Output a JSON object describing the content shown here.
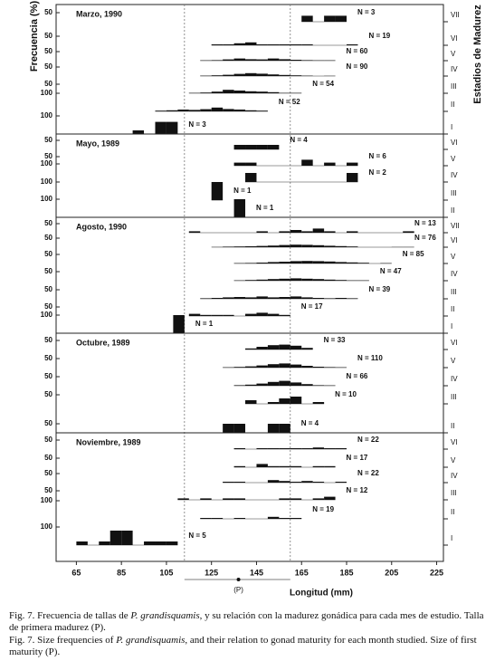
{
  "chart_data": {
    "type": "histogram",
    "y_label": "Frecuencia (%)",
    "y2_label": "Estadios de Madurez",
    "x_label": "Longitud (mm)",
    "xlim": [
      56,
      228
    ],
    "xticks": [
      65,
      85,
      105,
      125,
      145,
      165,
      185,
      205,
      225
    ],
    "color": "#111111",
    "maturity_label": "(P)",
    "maturity_value": 137,
    "maturity_range": [
      113,
      160
    ],
    "panels": [
      {
        "title": "Marzo, 1990",
        "rows": [
          {
            "stage": "VII",
            "n_label": "N = 3",
            "ytick": 50,
            "x": [
              165,
              175,
              180
            ],
            "values": [
              33,
              33,
              33
            ]
          },
          {
            "stage": "VI",
            "n_label": "N = 19",
            "ytick": 50,
            "x": [
              125,
              130,
              135,
              140,
              145,
              150,
              155,
              160,
              165,
              185
            ],
            "values": [
              5,
              5,
              11,
              16,
              5,
              5,
              5,
              5,
              5,
              5
            ]
          },
          {
            "stage": "V",
            "n_label": "N = 60",
            "ytick": 50,
            "x": [
              120,
              125,
              130,
              135,
              140,
              145,
              150,
              155,
              160,
              165,
              170,
              175
            ],
            "values": [
              2,
              3,
              7,
              12,
              8,
              7,
              12,
              8,
              5,
              3,
              2,
              2
            ]
          },
          {
            "stage": "IV",
            "n_label": "N = 90",
            "ytick": 50,
            "x": [
              120,
              125,
              130,
              135,
              140,
              145,
              150,
              155,
              160,
              165,
              175
            ],
            "values": [
              2,
              4,
              7,
              12,
              16,
              13,
              9,
              6,
              4,
              2,
              1
            ]
          },
          {
            "stage": "III",
            "n_label": "N = 54",
            "ytick": 50,
            "x": [
              115,
              120,
              125,
              130,
              135,
              140,
              145,
              150,
              155,
              160
            ],
            "values": [
              2,
              4,
              9,
              19,
              15,
              11,
              9,
              6,
              2,
              2
            ]
          },
          {
            "stage": "II",
            "n_label": "N = 52",
            "ytick": 100,
            "x": [
              100,
              105,
              110,
              115,
              120,
              125,
              130,
              135,
              140,
              145
            ],
            "values": [
              4,
              6,
              10,
              8,
              12,
              21,
              13,
              10,
              6,
              4
            ]
          },
          {
            "stage": "I",
            "n_label": "N = 3",
            "ytick": 100,
            "x": [
              90,
              100,
              105
            ],
            "values": [
              20,
              67,
              67
            ]
          }
        ]
      },
      {
        "title": "Mayo, 1989",
        "rows": [
          {
            "stage": "VI",
            "n_label": "N = 4",
            "ytick": 50,
            "x": [
              135,
              140,
              145,
              150
            ],
            "values": [
              25,
              25,
              25,
              25
            ]
          },
          {
            "stage": "V",
            "n_label": "N = 6",
            "ytick": 50,
            "x": [
              135,
              140,
              165,
              175,
              185
            ],
            "values": [
              17,
              17,
              33,
              17,
              17
            ]
          },
          {
            "stage": "IV",
            "n_label": "N = 2",
            "ytick": 100,
            "x": [
              140,
              185
            ],
            "values": [
              50,
              50
            ]
          },
          {
            "stage": "III",
            "n_label": "N = 1",
            "ytick": 100,
            "x": [
              125
            ],
            "values": [
              100
            ]
          },
          {
            "stage": "II",
            "n_label": "N = 1",
            "ytick": 100,
            "x": [
              135
            ],
            "values": [
              100
            ]
          }
        ]
      },
      {
        "title": "Agosto, 1990",
        "rows": [
          {
            "stage": "VII",
            "n_label": "N = 13",
            "ytick": 50,
            "x": [
              115,
              145,
              155,
              160,
              165,
              170,
              175,
              185,
              210
            ],
            "values": [
              8,
              8,
              8,
              15,
              8,
              23,
              8,
              8,
              8
            ]
          },
          {
            "stage": "VI",
            "n_label": "N = 76",
            "ytick": 50,
            "x": [
              125,
              130,
              135,
              140,
              145,
              150,
              155,
              160,
              165,
              170,
              175,
              180,
              185,
              205,
              210
            ],
            "values": [
              1,
              3,
              4,
              5,
              7,
              9,
              12,
              14,
              13,
              11,
              8,
              6,
              4,
              1,
              1
            ]
          },
          {
            "stage": "V",
            "n_label": "N = 85",
            "ytick": 50,
            "x": [
              135,
              140,
              145,
              150,
              155,
              160,
              165,
              170,
              175,
              180,
              185,
              190,
              200
            ],
            "values": [
              2,
              3,
              5,
              8,
              10,
              13,
              14,
              13,
              11,
              8,
              6,
              4,
              2
            ]
          },
          {
            "stage": "IV",
            "n_label": "N = 47",
            "ytick": 50,
            "x": [
              135,
              140,
              145,
              150,
              155,
              160,
              165,
              170,
              175,
              180,
              185,
              190
            ],
            "values": [
              2,
              4,
              6,
              9,
              11,
              13,
              11,
              9,
              6,
              4,
              2,
              2
            ]
          },
          {
            "stage": "III",
            "n_label": "N = 39",
            "ytick": 50,
            "x": [
              120,
              125,
              130,
              135,
              140,
              145,
              150,
              155,
              160,
              165,
              170,
              175,
              180,
              185
            ],
            "values": [
              3,
              5,
              8,
              10,
              8,
              13,
              8,
              10,
              13,
              8,
              5,
              3,
              5,
              3
            ]
          },
          {
            "stage": "II",
            "n_label": "N = 17",
            "ytick": 50,
            "x": [
              115,
              120,
              125,
              130,
              140,
              145,
              150,
              155
            ],
            "values": [
              12,
              6,
              6,
              6,
              12,
              18,
              12,
              6
            ]
          },
          {
            "stage": "I",
            "n_label": "N = 1",
            "ytick": 100,
            "x": [
              108
            ],
            "values": [
              100
            ]
          }
        ]
      },
      {
        "title": "Octubre, 1989",
        "rows": [
          {
            "stage": "VI",
            "n_label": "N = 33",
            "ytick": 50,
            "x": [
              140,
              145,
              150,
              155,
              160,
              165
            ],
            "values": [
              6,
              15,
              24,
              27,
              21,
              9
            ]
          },
          {
            "stage": "V",
            "n_label": "N = 110",
            "ytick": 50,
            "x": [
              130,
              135,
              140,
              145,
              150,
              155,
              160,
              165,
              170,
              175,
              180
            ],
            "values": [
              2,
              4,
              7,
              12,
              19,
              23,
              17,
              10,
              5,
              3,
              2
            ]
          },
          {
            "stage": "IV",
            "n_label": "N = 66",
            "ytick": 50,
            "x": [
              135,
              140,
              145,
              150,
              155,
              160,
              165,
              170,
              175
            ],
            "values": [
              3,
              6,
              12,
              21,
              27,
              18,
              9,
              3,
              2
            ]
          },
          {
            "stage": "III",
            "n_label": "N = 10",
            "ytick": 50,
            "x": [
              140,
              150,
              155,
              160,
              170
            ],
            "values": [
              20,
              10,
              30,
              40,
              10
            ]
          },
          {
            "stage": "II",
            "n_label": "N = 4",
            "ytick": 50,
            "x": [
              130,
              135,
              150,
              155
            ],
            "values": [
              50,
              50,
              50,
              50
            ]
          }
        ]
      },
      {
        "title": "Noviembre, 1989",
        "rows": [
          {
            "stage": "VI",
            "n_label": "N = 22",
            "ytick": 50,
            "x": [
              135,
              145,
              150,
              155,
              160,
              165,
              170,
              175,
              180
            ],
            "values": [
              5,
              5,
              5,
              5,
              5,
              5,
              9,
              5,
              5
            ]
          },
          {
            "stage": "V",
            "n_label": "N = 17",
            "ytick": 50,
            "x": [
              135,
              145,
              150,
              155,
              160,
              170,
              175
            ],
            "values": [
              6,
              18,
              6,
              6,
              6,
              6,
              6
            ]
          },
          {
            "stage": "IV",
            "n_label": "N = 22",
            "ytick": 50,
            "x": [
              130,
              135,
              150,
              155,
              160,
              165,
              170,
              180
            ],
            "values": [
              5,
              5,
              14,
              9,
              5,
              9,
              5,
              5
            ]
          },
          {
            "stage": "III",
            "n_label": "N = 12",
            "ytick": 50,
            "x": [
              110,
              120,
              130,
              135,
              155,
              160,
              170,
              175
            ],
            "values": [
              8,
              8,
              8,
              8,
              8,
              8,
              8,
              17
            ]
          },
          {
            "stage": "II",
            "n_label": "N = 19",
            "ytick": 100,
            "x": [
              120,
              125,
              135,
              150,
              155,
              160
            ],
            "values": [
              5,
              5,
              5,
              11,
              5,
              5
            ]
          },
          {
            "stage": "I",
            "n_label": "N = 5",
            "ytick": 100,
            "x": [
              65,
              75,
              80,
              85,
              95,
              100,
              105
            ],
            "values": [
              20,
              20,
              80,
              80,
              20,
              20,
              20
            ]
          }
        ]
      }
    ]
  },
  "caption": {
    "es": [
      "Fig. 7. Frecuencia de tallas de ",
      "P. grandisquamis",
      ", y su relación con la madurez gonádica para cada mes de estudio. Talla de primera madurez (P)."
    ],
    "en": [
      "Fig. 7. Size frequencies of ",
      "P. grandisquamis",
      ", and their relation to gonad maturity for each month studied. Size of first maturity (P)."
    ]
  }
}
